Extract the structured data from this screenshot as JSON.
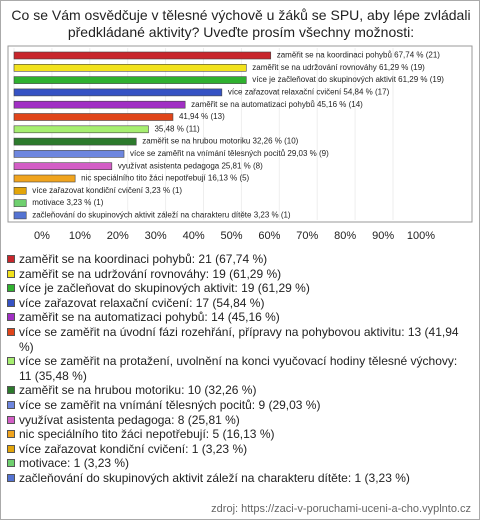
{
  "chart_data": {
    "type": "bar",
    "title": "Co se Vám osvědčuje v tělesné výchově u žáků se SPU, aby lépe zvládali předkládané aktivity? Uveďte prosím všechny možnosti:",
    "values": [
      67.74,
      61.29,
      61.29,
      54.84,
      45.16,
      41.94,
      35.48,
      32.26,
      29.03,
      25.81,
      16.13,
      3.23,
      3.23,
      3.23
    ],
    "counts": [
      21,
      19,
      19,
      17,
      14,
      13,
      11,
      10,
      9,
      8,
      5,
      1,
      1,
      1
    ],
    "value_labels": [
      "zaměřit se na koordinaci pohybů 67,74 % (21)",
      "zaměřit se na udržování rovnováhy 61,29 % (19)",
      "více je začleňovat do skupinových aktivit 61,29 % (19)",
      "více zařazovat relaxační cvičení 54,84 % (17)",
      "zaměřit se na automatizaci pohybů 45,16 % (14)",
      "41,94 % (13)",
      "35,48 % (11)",
      "zaměřit se na hrubou motoriku 32,26 % (10)",
      "více se zaměřit na vnímání tělesných pocitů 29,03 % (9)",
      "využívat asistenta pedagoga 25,81 % (8)",
      "nic speciálního tito žáci nepotřebují 16,13 % (5)",
      "více zařazovat kondiční cvičení 3,23 % (1)",
      "motivace 3,23 % (1)",
      "začleňování do skupinových aktivit záleží na charakteru dítěte 3,23 % (1)"
    ],
    "legend_labels": [
      "zaměřit se na koordinaci pohybů: 21 (67,74 %)",
      "zaměřit se na udržování rovnováhy: 19 (61,29 %)",
      "více je začleňovat do skupinových aktivit: 19 (61,29 %)",
      "více zařazovat relaxační cvičení: 17 (54,84 %)",
      "zaměřit se na automatizaci pohybů: 14 (45,16 %)",
      "více se zaměřit na úvodní fázi rozehřání, přípravy na pohybovou aktivitu: 13 (41,94 %)",
      "více se zaměřit na protažení, uvolnění na konci vyučovací hodiny tělesné výchovy: 11 (35,48 %)",
      "zaměřit se na hrubou motoriku: 10 (32,26 %)",
      "více se zaměřit na vnímání tělesných pocitů: 9 (29,03 %)",
      "využívat asistenta pedagoga: 8 (25,81 %)",
      "nic speciálního tito žáci nepotřebují: 5 (16,13 %)",
      "více zařazovat kondiční cvičení: 1 (3,23 %)",
      "motivace: 1 (3,23 %)",
      "začleňování do skupinových aktivit záleží na charakteru dítěte: 1 (3,23 %)"
    ],
    "colors": [
      "#c8262c",
      "#f2e21c",
      "#2fb12f",
      "#3552c4",
      "#a12fc4",
      "#e0451a",
      "#a6ee70",
      "#2c7a2c",
      "#6d86df",
      "#d35ec6",
      "#f0a41e",
      "#e3a50a",
      "#6fd06f",
      "#5473d2"
    ],
    "xlim": [
      0,
      100
    ],
    "xticks": [
      {
        "value": 0,
        "label": "0%"
      },
      {
        "value": 10,
        "label": "10%"
      },
      {
        "value": 20,
        "label": "20%"
      },
      {
        "value": 30,
        "label": "30%"
      },
      {
        "value": 40,
        "label": "40%"
      },
      {
        "value": 50,
        "label": "50%"
      },
      {
        "value": 60,
        "label": "60%"
      },
      {
        "value": 70,
        "label": "70%"
      },
      {
        "value": 80,
        "label": "80%"
      },
      {
        "value": 90,
        "label": "90%"
      },
      {
        "value": 100,
        "label": "100%"
      }
    ],
    "source": "zdroj: https://zaci-v-poruchami-uceni-a-cho.vyplnto.cz"
  }
}
